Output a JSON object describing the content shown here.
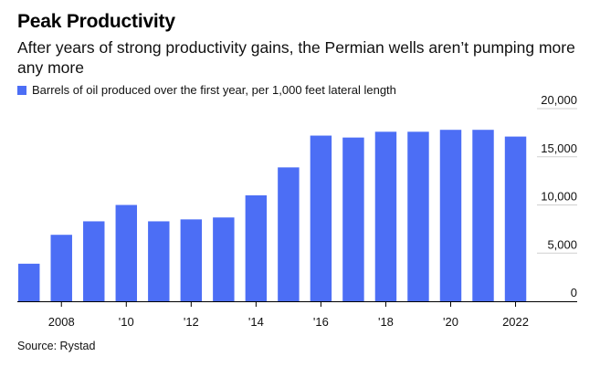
{
  "title": "Peak Productivity",
  "subtitle": "After years of strong productivity gains, the Permian wells aren’t pumping more any more",
  "source": "Source: Rystad",
  "colors": {
    "bar": "#4c6ef5",
    "axis": "#000000",
    "grid": "#d0d0d0"
  },
  "chart_data": {
    "type": "bar",
    "series": [
      {
        "name": "Barrels of oil produced over the first year, per 1,000 feet lateral length",
        "x": [
          2007,
          2008,
          2009,
          2010,
          2011,
          2012,
          2013,
          2014,
          2015,
          2016,
          2017,
          2018,
          2019,
          2020,
          2021,
          2022
        ],
        "values": [
          3900,
          6900,
          8300,
          10000,
          8300,
          8500,
          8700,
          11000,
          13900,
          17200,
          17000,
          17600,
          17600,
          17800,
          17800,
          17100
        ]
      }
    ],
    "xticks": [
      {
        "x": 2008,
        "label": "2008"
      },
      {
        "x": 2010,
        "label": "'10"
      },
      {
        "x": 2012,
        "label": "'12"
      },
      {
        "x": 2014,
        "label": "'14"
      },
      {
        "x": 2016,
        "label": "'16"
      },
      {
        "x": 2018,
        "label": "'18"
      },
      {
        "x": 2020,
        "label": "'20"
      },
      {
        "x": 2022,
        "label": "2022"
      }
    ],
    "yticks": [
      {
        "value": 0,
        "label": "0"
      },
      {
        "value": 5000,
        "label": "5,000"
      },
      {
        "value": 10000,
        "label": "10,000"
      },
      {
        "value": 15000,
        "label": "15,000"
      },
      {
        "value": 20000,
        "label": "20,000"
      }
    ],
    "ylim": [
      0,
      20000
    ],
    "y_axis_side": "right",
    "grid": true,
    "legend_position": "top-left"
  }
}
